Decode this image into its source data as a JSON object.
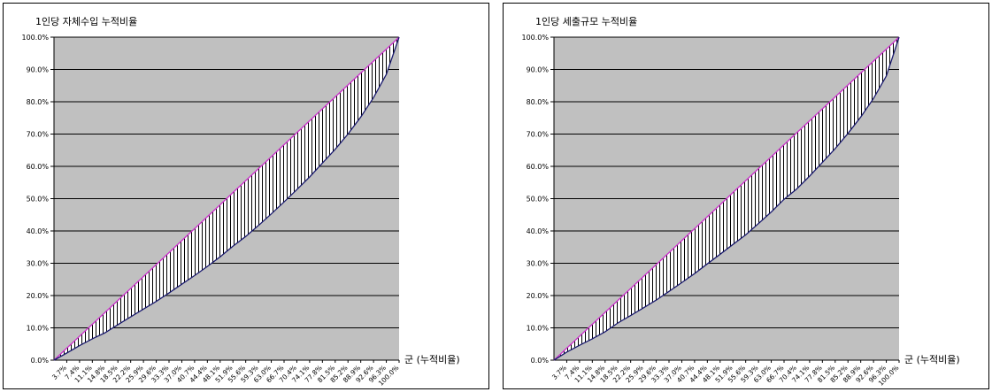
{
  "chart_data": [
    {
      "type": "area",
      "title": "1인당 자체수입 누적비율",
      "xlabel": "군 (누적비율)",
      "ylabel": "",
      "ylim": [
        0,
        100
      ],
      "ytick_labels": [
        "0.0%",
        "10.0%",
        "20.0%",
        "30.0%",
        "40.0%",
        "50.0%",
        "60.0%",
        "70.0%",
        "80.0%",
        "90.0%",
        "100.0%"
      ],
      "xtick_labels": [
        "3.7%",
        "7.4%",
        "11.1%",
        "14.8%",
        "18.5%",
        "22.2%",
        "25.9%",
        "29.6%",
        "33.3%",
        "37.0%",
        "40.7%",
        "44.4%",
        "48.1%",
        "51.9%",
        "55.6%",
        "59.3%",
        "63.0%",
        "66.7%",
        "70.4%",
        "74.1%",
        "77.8%",
        "81.5%",
        "85.2%",
        "88.9%",
        "92.6%",
        "96.3%",
        "100.0%"
      ],
      "series": [
        {
          "values": [
            0,
            3.7,
            7.4,
            11.1,
            14.8,
            18.5,
            22.2,
            25.9,
            29.6,
            33.3,
            37.0,
            40.7,
            44.4,
            48.1,
            51.9,
            55.6,
            59.3,
            63.0,
            66.7,
            70.4,
            74.1,
            77.8,
            81.5,
            85.2,
            88.9,
            92.6,
            96.3,
            100.0
          ]
        },
        {
          "values": [
            0,
            2.2,
            4.5,
            6.6,
            8.5,
            11.0,
            13.4,
            15.8,
            18.2,
            20.8,
            23.5,
            26.2,
            29.0,
            32.0,
            35.3,
            38.3,
            41.7,
            45.3,
            49.0,
            52.8,
            56.7,
            61.0,
            65.3,
            70.0,
            75.3,
            81.3,
            88.5,
            100.0
          ]
        }
      ],
      "colors": {
        "equality": "#cc33cc",
        "curve": "#1a1a6e",
        "plot_bg": "#c0c0c0"
      }
    },
    {
      "type": "area",
      "title": "1인당 세출규모 누적비율",
      "xlabel": "군 (누적비율)",
      "ylabel": "",
      "ylim": [
        0,
        100
      ],
      "ytick_labels": [
        "0.0%",
        "10.0%",
        "20.0%",
        "30.0%",
        "40.0%",
        "50.0%",
        "60.0%",
        "70.0%",
        "80.0%",
        "90.0%",
        "100.0%"
      ],
      "xtick_labels": [
        "3.7%",
        "7.4%",
        "11.1%",
        "14.8%",
        "18.5%",
        "22.2%",
        "25.9%",
        "29.6%",
        "33.3%",
        "37.0%",
        "40.7%",
        "44.4%",
        "48.1%",
        "51.9%",
        "55.6%",
        "59.3%",
        "63.0%",
        "66.7%",
        "70.4%",
        "74.1%",
        "77.8%",
        "81.5%",
        "85.2%",
        "88.9%",
        "92.6%",
        "96.3%",
        "100.0%"
      ],
      "series": [
        {
          "values": [
            0,
            3.7,
            7.4,
            11.1,
            14.8,
            18.5,
            22.2,
            25.9,
            29.6,
            33.3,
            37.0,
            40.7,
            44.4,
            48.1,
            51.9,
            55.6,
            59.3,
            63.0,
            66.7,
            70.4,
            74.1,
            77.8,
            81.5,
            85.2,
            88.9,
            92.6,
            96.3,
            100.0
          ]
        },
        {
          "values": [
            0,
            2.5,
            4.6,
            6.6,
            8.8,
            11.5,
            13.8,
            16.2,
            18.6,
            21.3,
            24.0,
            26.8,
            29.8,
            32.8,
            35.8,
            38.8,
            42.3,
            45.9,
            49.8,
            53.0,
            57.0,
            61.2,
            65.5,
            70.2,
            75.3,
            81.0,
            88.0,
            100.0
          ]
        }
      ],
      "colors": {
        "equality": "#cc33cc",
        "curve": "#1a1a6e",
        "plot_bg": "#c0c0c0"
      }
    }
  ]
}
